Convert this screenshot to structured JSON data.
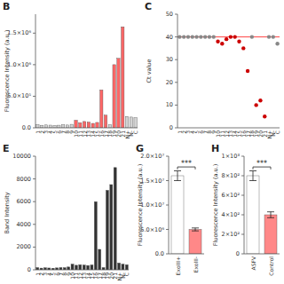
{
  "chart_data": [
    {
      "type": "bar",
      "title": "B",
      "ylabel": "Fluorescence Intensity (a.u.)",
      "categories": [
        "1",
        "2",
        "3",
        "4",
        "5",
        "6",
        "7",
        "8",
        "9",
        "10",
        "11",
        "12",
        "13",
        "14",
        "15",
        "16",
        "17",
        "18",
        "19",
        "20",
        "21",
        "N+",
        "N-",
        "C"
      ],
      "values": [
        50000,
        40000,
        45000,
        42000,
        38000,
        41000,
        48000,
        44000,
        55000,
        120000,
        80000,
        100000,
        90000,
        70000,
        85000,
        600000,
        200000,
        50000,
        1000000,
        1100000,
        1600000,
        180000,
        170000,
        160000
      ],
      "colors": [
        "#d3d3d3",
        "#d3d3d3",
        "#d3d3d3",
        "#d3d3d3",
        "#d3d3d3",
        "#d3d3d3",
        "#d3d3d3",
        "#d3d3d3",
        "#d3d3d3",
        "#ff6666",
        "#ff6666",
        "#ff6666",
        "#ff6666",
        "#ff6666",
        "#ff6666",
        "#ff6666",
        "#ff6666",
        "#d3d3d3",
        "#ff6666",
        "#ff6666",
        "#ff6666",
        "#d3d3d3",
        "#d3d3d3",
        "#d3d3d3"
      ],
      "ylim": [
        0,
        1800000
      ],
      "yticks": [
        {
          "value": 0,
          "label": "0.0"
        },
        {
          "value": 500000,
          "label": "5.0×10⁵"
        },
        {
          "value": 1000000,
          "label": "1.0×10⁶"
        },
        {
          "value": 1500000,
          "label": "1.5×10⁶"
        }
      ]
    },
    {
      "type": "scatter",
      "title": "C",
      "ylabel": "Ct value",
      "categories": [
        "1",
        "2",
        "3",
        "4",
        "5",
        "6",
        "7",
        "8",
        "9",
        "10",
        "11",
        "12",
        "13",
        "14",
        "15",
        "16",
        "17",
        "18",
        "19",
        "20",
        "21",
        "N+",
        "N-",
        "C"
      ],
      "values": [
        40,
        40,
        40,
        40,
        40,
        40,
        40,
        40,
        40,
        38,
        37,
        39,
        40,
        40,
        38,
        35,
        25,
        40,
        10,
        12,
        5,
        40,
        40,
        37
      ],
      "colors": [
        "#888888",
        "#888888",
        "#888888",
        "#888888",
        "#888888",
        "#888888",
        "#888888",
        "#888888",
        "#888888",
        "#cc0000",
        "#cc0000",
        "#cc0000",
        "#cc0000",
        "#cc0000",
        "#cc0000",
        "#cc0000",
        "#cc0000",
        "#888888",
        "#cc0000",
        "#cc0000",
        "#cc0000",
        "#888888",
        "#888888",
        "#888888"
      ],
      "reference_line": {
        "value": 40,
        "color": "#ff4444"
      },
      "ylim": [
        0,
        50
      ],
      "yticks": [
        0,
        10,
        20,
        30,
        40,
        50
      ]
    },
    {
      "type": "bar",
      "title": "E",
      "ylabel": "Band Intensity",
      "categories": [
        "1",
        "2",
        "3",
        "4",
        "5",
        "6",
        "7",
        "8",
        "9",
        "10",
        "11",
        "12",
        "13",
        "14",
        "15",
        "16",
        "17",
        "18",
        "19",
        "20",
        "21",
        "N+",
        "N-",
        "C"
      ],
      "values": [
        200,
        150,
        180,
        160,
        140,
        170,
        200,
        190,
        250,
        500,
        400,
        450,
        420,
        380,
        430,
        6000,
        1800,
        200,
        7000,
        7500,
        9000,
        600,
        500,
        450
      ],
      "color": "#333333",
      "ylim": [
        0,
        10000
      ],
      "yticks": [
        0,
        2000,
        4000,
        6000,
        8000,
        10000
      ]
    },
    {
      "type": "bar",
      "title": "G",
      "ylabel": "Fluorescence Intensity (a.u.)",
      "categories": [
        "ExoIII+",
        "ExoIII-"
      ],
      "values": [
        16000000,
        5000000
      ],
      "errors": [
        1000000,
        300000
      ],
      "colors": [
        "#ffffff",
        "#ff8888"
      ],
      "annotation": "***",
      "ylim": [
        0,
        20000000
      ],
      "yticks": [
        {
          "value": 0,
          "label": "0.0"
        },
        {
          "value": 5000000,
          "label": "5.0×10⁶"
        },
        {
          "value": 10000000,
          "label": "1.0×10⁷"
        },
        {
          "value": 15000000,
          "label": "1.5×10⁷"
        },
        {
          "value": 20000000,
          "label": "2.0×10⁷"
        }
      ]
    },
    {
      "type": "bar",
      "title": "H",
      "ylabel": "Fluorescence Intensity (a.u.)",
      "categories": [
        "ASFV",
        "Control"
      ],
      "values": [
        800,
        400
      ],
      "errors": [
        50,
        30
      ],
      "colors": [
        "#ffffff",
        "#ff8888"
      ],
      "annotation": "***",
      "ylim": [
        0,
        1000
      ],
      "yticks": [
        0,
        {
          "value": 200,
          "label": "2×10²"
        },
        {
          "value": 400,
          "label": "4×10²"
        },
        {
          "value": 600,
          "label": "6×10²"
        },
        {
          "value": 800,
          "label": "8×10²"
        },
        {
          "value": 1000,
          "label": "1×10³"
        }
      ]
    }
  ]
}
